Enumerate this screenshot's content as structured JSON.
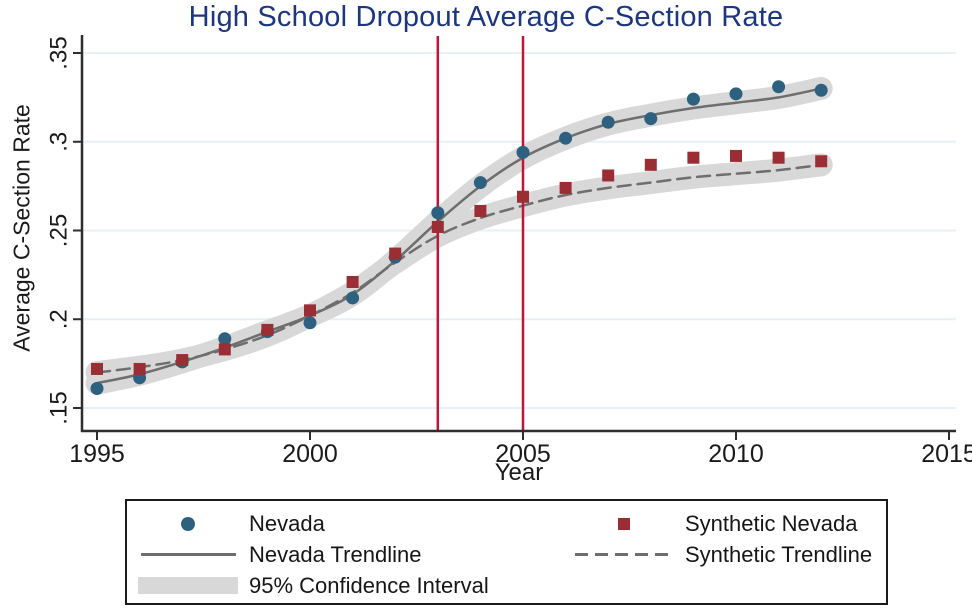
{
  "chart_data": {
    "type": "scatter",
    "title": "High School Dropout Average C-Section Rate",
    "xlabel": "Year",
    "ylabel": "Average C-Section Rate",
    "xlim": [
      1994.6,
      2015.2
    ],
    "ylim": [
      0.137,
      0.36
    ],
    "xticks": [
      1995,
      2000,
      2005,
      2010,
      2015
    ],
    "yticks": [
      0.15,
      0.2,
      0.25,
      0.3,
      0.35
    ],
    "ytick_labels": [
      ".15",
      ".2",
      ".25",
      ".3",
      ".35"
    ],
    "grid": true,
    "legend_position": "bottom",
    "vlines": {
      "years": [
        2003,
        2005
      ],
      "color": "#c0143c"
    },
    "x": [
      1995,
      1996,
      1997,
      1998,
      1999,
      2000,
      2001,
      2002,
      2003,
      2004,
      2005,
      2006,
      2007,
      2008,
      2009,
      2010,
      2011,
      2012
    ],
    "series": [
      {
        "name": "Nevada",
        "kind": "scatter",
        "marker": "circle",
        "color": "#2d617f",
        "values": [
          0.161,
          0.167,
          0.176,
          0.189,
          0.193,
          0.198,
          0.212,
          0.235,
          0.26,
          0.277,
          0.294,
          0.302,
          0.311,
          0.313,
          0.324,
          0.327,
          0.331,
          0.329
        ]
      },
      {
        "name": "Synthetic Nevada",
        "kind": "scatter",
        "marker": "square",
        "color": "#9b2d35",
        "values": [
          0.172,
          0.172,
          0.177,
          0.183,
          0.194,
          0.205,
          0.221,
          0.237,
          0.252,
          0.261,
          0.269,
          0.274,
          0.281,
          0.287,
          0.291,
          0.292,
          0.291,
          0.289
        ]
      },
      {
        "name": "Nevada Trendline",
        "kind": "line",
        "dash": "solid",
        "color": "#6e6e6e",
        "values": [
          0.164,
          0.169,
          0.176,
          0.184,
          0.193,
          0.202,
          0.214,
          0.233,
          0.255,
          0.275,
          0.291,
          0.302,
          0.31,
          0.315,
          0.319,
          0.322,
          0.325,
          0.33
        ]
      },
      {
        "name": "Synthetic Trendline",
        "kind": "line",
        "dash": "dashed",
        "color": "#6e6e6e",
        "values": [
          0.17,
          0.173,
          0.177,
          0.183,
          0.191,
          0.202,
          0.215,
          0.232,
          0.247,
          0.257,
          0.264,
          0.27,
          0.274,
          0.277,
          0.28,
          0.282,
          0.284,
          0.287
        ]
      }
    ],
    "ci_band": {
      "label": "95% Confidence Interval",
      "color": "#d8d8d8",
      "applies_to": [
        "Nevada Trendline",
        "Synthetic Trendline"
      ]
    },
    "colors": {
      "grid": "#e7f0f5",
      "axis": "#2e2e2e",
      "text": "#1a1a1a",
      "title": "#1c3680"
    }
  }
}
